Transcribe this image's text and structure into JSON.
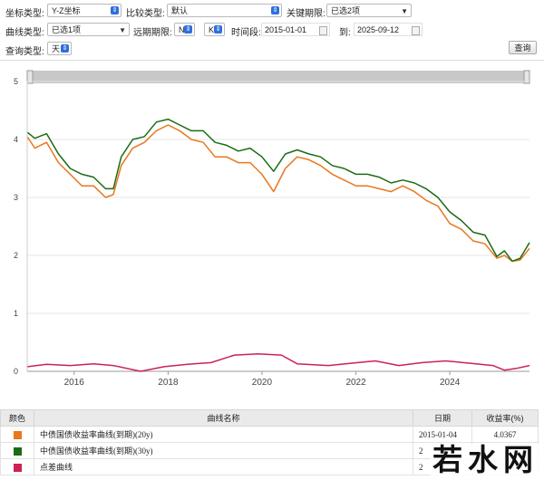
{
  "controls": {
    "coord_type_label": "坐标类型:",
    "coord_type_value": "Y-Z坐标",
    "compare_type_label": "比较类型:",
    "compare_type_value": "默认",
    "key_term_label": "关键期限:",
    "key_term_value": "已选2项",
    "curve_type_label": "曲线类型:",
    "curve_type_value": "已选1项",
    "forward_term_label": "远期期限:",
    "forward_n_value": "N",
    "forward_k_value": "K",
    "period_label": "时间段:",
    "start_date": "2015-01-01",
    "to_label": "到:",
    "end_date": "2025-09-12",
    "query_type_label": "查询类型:",
    "query_type_value": "天",
    "query_button": "查询"
  },
  "chart_data": {
    "type": "line",
    "x_range": [
      "2015-01-01",
      "2025-09-12"
    ],
    "ylim": [
      0,
      5
    ],
    "yticks": [
      "0",
      "1",
      "2",
      "3",
      "4",
      "5"
    ],
    "xticks": [
      "2016",
      "2018",
      "2020",
      "2022",
      "2024"
    ],
    "grid": true,
    "series": [
      {
        "name": "中债国债收益率曲线(到期)(20y)",
        "color": "#e8771e",
        "points": [
          [
            "2015-01-04",
            4.04
          ],
          [
            "2015-03-01",
            3.85
          ],
          [
            "2015-06-01",
            3.95
          ],
          [
            "2015-09-01",
            3.6
          ],
          [
            "2015-12-01",
            3.4
          ],
          [
            "2016-03-01",
            3.2
          ],
          [
            "2016-06-01",
            3.2
          ],
          [
            "2016-09-01",
            3.0
          ],
          [
            "2016-11-01",
            3.05
          ],
          [
            "2017-01-01",
            3.55
          ],
          [
            "2017-04-01",
            3.85
          ],
          [
            "2017-07-01",
            3.95
          ],
          [
            "2017-10-01",
            4.15
          ],
          [
            "2018-01-01",
            4.25
          ],
          [
            "2018-04-01",
            4.15
          ],
          [
            "2018-07-01",
            4.0
          ],
          [
            "2018-10-01",
            3.95
          ],
          [
            "2019-01-01",
            3.7
          ],
          [
            "2019-04-01",
            3.7
          ],
          [
            "2019-07-01",
            3.6
          ],
          [
            "2019-10-01",
            3.6
          ],
          [
            "2020-01-01",
            3.4
          ],
          [
            "2020-04-01",
            3.1
          ],
          [
            "2020-07-01",
            3.5
          ],
          [
            "2020-10-01",
            3.7
          ],
          [
            "2021-01-01",
            3.65
          ],
          [
            "2021-04-01",
            3.55
          ],
          [
            "2021-07-01",
            3.4
          ],
          [
            "2021-10-01",
            3.3
          ],
          [
            "2022-01-01",
            3.2
          ],
          [
            "2022-04-01",
            3.2
          ],
          [
            "2022-07-01",
            3.15
          ],
          [
            "2022-10-01",
            3.1
          ],
          [
            "2023-01-01",
            3.2
          ],
          [
            "2023-04-01",
            3.1
          ],
          [
            "2023-07-01",
            2.95
          ],
          [
            "2023-10-01",
            2.85
          ],
          [
            "2024-01-01",
            2.55
          ],
          [
            "2024-04-01",
            2.45
          ],
          [
            "2024-07-01",
            2.25
          ],
          [
            "2024-10-01",
            2.2
          ],
          [
            "2025-01-01",
            1.95
          ],
          [
            "2025-03-01",
            2.0
          ],
          [
            "2025-05-01",
            1.9
          ],
          [
            "2025-07-01",
            1.92
          ],
          [
            "2025-09-12",
            2.12
          ]
        ]
      },
      {
        "name": "中债国债收益率曲线(到期)(30y)",
        "color": "#1c6b14",
        "points": [
          [
            "2015-01-04",
            4.12
          ],
          [
            "2015-03-01",
            4.02
          ],
          [
            "2015-06-01",
            4.1
          ],
          [
            "2015-09-01",
            3.75
          ],
          [
            "2015-12-01",
            3.5
          ],
          [
            "2016-03-01",
            3.4
          ],
          [
            "2016-06-01",
            3.35
          ],
          [
            "2016-09-01",
            3.15
          ],
          [
            "2016-11-01",
            3.15
          ],
          [
            "2017-01-01",
            3.7
          ],
          [
            "2017-04-01",
            4.0
          ],
          [
            "2017-07-01",
            4.05
          ],
          [
            "2017-10-01",
            4.3
          ],
          [
            "2018-01-01",
            4.35
          ],
          [
            "2018-04-01",
            4.25
          ],
          [
            "2018-07-01",
            4.15
          ],
          [
            "2018-10-01",
            4.15
          ],
          [
            "2019-01-01",
            3.95
          ],
          [
            "2019-04-01",
            3.9
          ],
          [
            "2019-07-01",
            3.8
          ],
          [
            "2019-10-01",
            3.85
          ],
          [
            "2020-01-01",
            3.7
          ],
          [
            "2020-04-01",
            3.45
          ],
          [
            "2020-07-01",
            3.75
          ],
          [
            "2020-10-01",
            3.82
          ],
          [
            "2021-01-01",
            3.75
          ],
          [
            "2021-04-01",
            3.7
          ],
          [
            "2021-07-01",
            3.55
          ],
          [
            "2021-10-01",
            3.5
          ],
          [
            "2022-01-01",
            3.4
          ],
          [
            "2022-04-01",
            3.4
          ],
          [
            "2022-07-01",
            3.35
          ],
          [
            "2022-10-01",
            3.25
          ],
          [
            "2023-01-01",
            3.3
          ],
          [
            "2023-04-01",
            3.25
          ],
          [
            "2023-07-01",
            3.15
          ],
          [
            "2023-10-01",
            3.0
          ],
          [
            "2024-01-01",
            2.75
          ],
          [
            "2024-04-01",
            2.6
          ],
          [
            "2024-07-01",
            2.4
          ],
          [
            "2024-10-01",
            2.35
          ],
          [
            "2025-01-01",
            1.98
          ],
          [
            "2025-03-01",
            2.08
          ],
          [
            "2025-05-01",
            1.9
          ],
          [
            "2025-07-01",
            1.95
          ],
          [
            "2025-09-12",
            2.22
          ]
        ]
      },
      {
        "name": "点差曲线",
        "color": "#cc2255",
        "points": [
          [
            "2015-01-04",
            0.08
          ],
          [
            "2015-06-01",
            0.12
          ],
          [
            "2015-12-01",
            0.1
          ],
          [
            "2016-06-01",
            0.13
          ],
          [
            "2016-11-01",
            0.1
          ],
          [
            "2017-06-01",
            0.0
          ],
          [
            "2017-12-01",
            0.08
          ],
          [
            "2018-06-01",
            0.12
          ],
          [
            "2018-12-01",
            0.15
          ],
          [
            "2019-06-01",
            0.28
          ],
          [
            "2019-12-01",
            0.3
          ],
          [
            "2020-06-01",
            0.28
          ],
          [
            "2020-10-01",
            0.13
          ],
          [
            "2021-06-01",
            0.1
          ],
          [
            "2021-12-01",
            0.14
          ],
          [
            "2022-06-01",
            0.18
          ],
          [
            "2022-12-01",
            0.1
          ],
          [
            "2023-06-01",
            0.15
          ],
          [
            "2023-12-01",
            0.18
          ],
          [
            "2024-06-01",
            0.14
          ],
          [
            "2024-12-01",
            0.1
          ],
          [
            "2025-03-01",
            0.02
          ],
          [
            "2025-06-01",
            0.05
          ],
          [
            "2025-09-12",
            0.1
          ]
        ]
      }
    ]
  },
  "legend_table": {
    "headers": [
      "颜色",
      "曲线名称",
      "日期",
      "收益率(%)"
    ],
    "rows": [
      {
        "color": "#e8771e",
        "name": "中债国债收益率曲线(到期)(20y)",
        "date": "2015-01-04",
        "value": "4.0367"
      },
      {
        "color": "#1c6b14",
        "name": "中债国债收益率曲线(到期)(30y)",
        "date": "2",
        "value": ""
      },
      {
        "color": "#cc2255",
        "name": "点差曲线",
        "date": "2",
        "value": ""
      }
    ]
  },
  "watermark": "若水网"
}
